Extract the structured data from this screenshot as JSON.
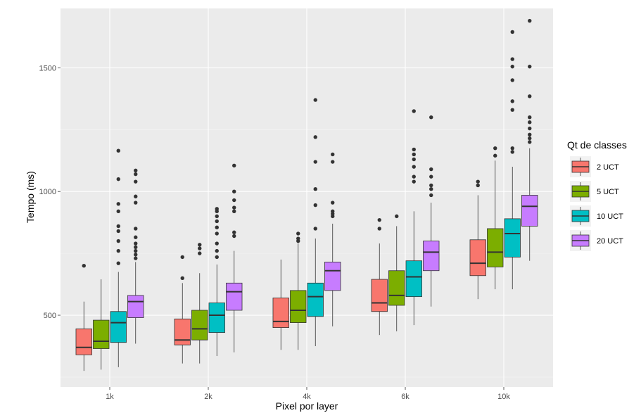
{
  "chart_data": {
    "type": "box",
    "xlabel": "Pixel por layer",
    "ylabel": "Tempo (ms)",
    "categories": [
      "1k",
      "2k",
      "4k",
      "6k",
      "10k"
    ],
    "ylim": [
      210,
      1740
    ],
    "yticks": [
      500,
      1000,
      1500
    ],
    "grid": true,
    "legend": {
      "title": "Qt de classes",
      "position": "right"
    },
    "series": [
      {
        "name": "2 UCT",
        "color": "#f8766d",
        "boxes": [
          {
            "min": 275,
            "q1": 340,
            "median": 370,
            "q3": 445,
            "max": 555,
            "outliers": [
              700
            ]
          },
          {
            "min": 305,
            "q1": 380,
            "median": 400,
            "q3": 485,
            "max": 630,
            "outliers": [
              650,
              735
            ]
          },
          {
            "min": 360,
            "q1": 450,
            "median": 475,
            "q3": 570,
            "max": 725,
            "outliers": []
          },
          {
            "min": 420,
            "q1": 515,
            "median": 550,
            "q3": 645,
            "max": 790,
            "outliers": [
              850,
              885
            ]
          },
          {
            "min": 565,
            "q1": 660,
            "median": 710,
            "q3": 805,
            "max": 985,
            "outliers": [
              1025,
              1040
            ]
          }
        ]
      },
      {
        "name": "5 UCT",
        "color": "#7cae00",
        "boxes": [
          {
            "min": 280,
            "q1": 365,
            "median": 395,
            "q3": 480,
            "max": 645,
            "outliers": []
          },
          {
            "min": 305,
            "q1": 400,
            "median": 445,
            "q3": 520,
            "max": 670,
            "outliers": [
              750,
              770,
              785
            ]
          },
          {
            "min": 360,
            "q1": 470,
            "median": 520,
            "q3": 600,
            "max": 790,
            "outliers": [
              800,
              810,
              830
            ]
          },
          {
            "min": 435,
            "q1": 540,
            "median": 580,
            "q3": 680,
            "max": 860,
            "outliers": [
              900
            ]
          },
          {
            "min": 605,
            "q1": 695,
            "median": 755,
            "q3": 850,
            "max": 1125,
            "outliers": [
              1145,
              1175
            ]
          }
        ]
      },
      {
        "name": "10 UCT",
        "color": "#00bfc4",
        "boxes": [
          {
            "min": 290,
            "q1": 390,
            "median": 470,
            "q3": 515,
            "max": 675,
            "outliers": [
              710,
              760,
              800,
              840,
              860,
              920,
              950,
              1050,
              1165
            ]
          },
          {
            "min": 335,
            "q1": 430,
            "median": 500,
            "q3": 550,
            "max": 705,
            "outliers": [
              735,
              760,
              790,
              830,
              855,
              880,
              900,
              920,
              930
            ]
          },
          {
            "min": 375,
            "q1": 495,
            "median": 575,
            "q3": 630,
            "max": 810,
            "outliers": [
              850,
              945,
              1010,
              1120,
              1220,
              1370
            ]
          },
          {
            "min": 460,
            "q1": 575,
            "median": 655,
            "q3": 720,
            "max": 920,
            "outliers": [
              1040,
              1060,
              1100,
              1130,
              1150,
              1170,
              1325
            ]
          },
          {
            "min": 605,
            "q1": 735,
            "median": 830,
            "q3": 890,
            "max": 1100,
            "outliers": [
              1160,
              1175,
              1330,
              1365,
              1450,
              1505,
              1535,
              1645
            ]
          }
        ]
      },
      {
        "name": "20 UCT",
        "color": "#c77cff",
        "boxes": [
          {
            "min": 385,
            "q1": 490,
            "median": 555,
            "q3": 580,
            "max": 715,
            "outliers": [
              730,
              745,
              760,
              775,
              790,
              815,
              850,
              955,
              980,
              1040,
              1070,
              1085
            ]
          },
          {
            "min": 350,
            "q1": 520,
            "median": 595,
            "q3": 630,
            "max": 760,
            "outliers": [
              820,
              835,
              920,
              935,
              965,
              1000,
              1105
            ]
          },
          {
            "min": 455,
            "q1": 600,
            "median": 680,
            "q3": 715,
            "max": 870,
            "outliers": [
              900,
              910,
              920,
              955,
              1120,
              1150
            ]
          },
          {
            "min": 535,
            "q1": 680,
            "median": 755,
            "q3": 800,
            "max": 955,
            "outliers": [
              985,
              1010,
              1025,
              1060,
              1090,
              1300
            ]
          },
          {
            "min": 720,
            "q1": 860,
            "median": 940,
            "q3": 985,
            "max": 1175,
            "outliers": [
              1200,
              1215,
              1230,
              1255,
              1280,
              1300,
              1385,
              1505,
              1690
            ]
          }
        ]
      }
    ]
  }
}
